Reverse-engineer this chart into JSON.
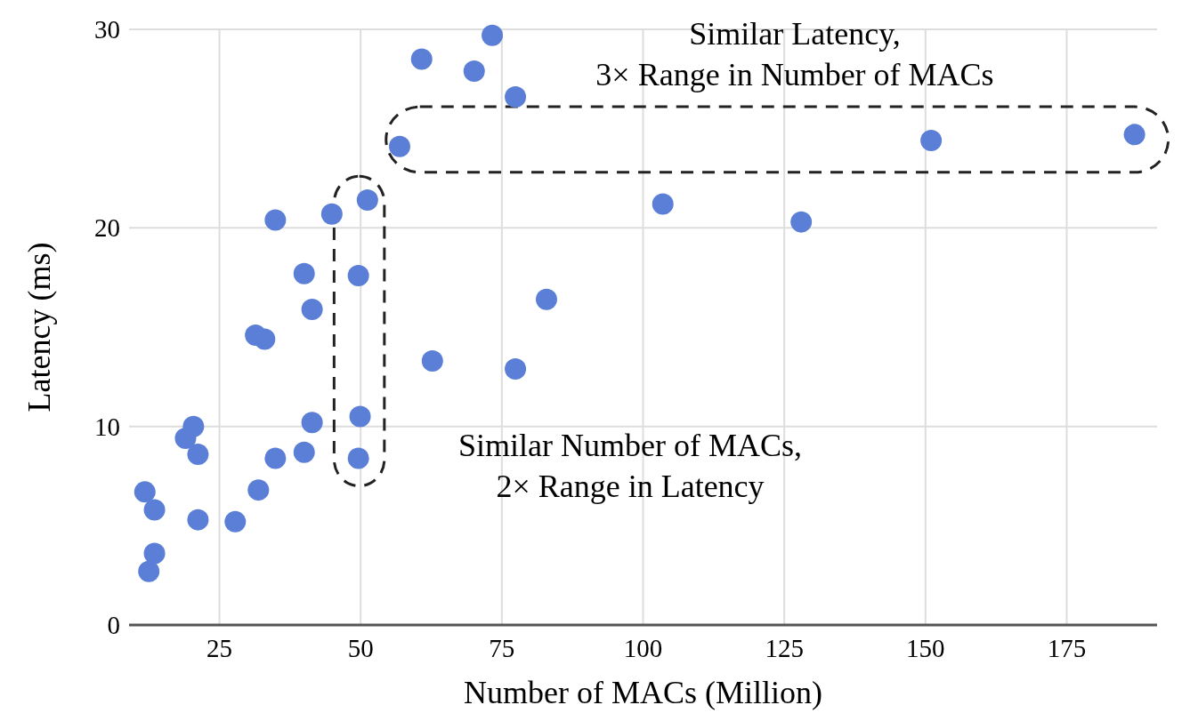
{
  "chart_data": {
    "type": "scatter",
    "xlabel": "Number of MACs (Million)",
    "ylabel": "Latency (ms)",
    "x": [
      11.8,
      13.5,
      12.5,
      13.5,
      19,
      20.4,
      21.2,
      21.2,
      27.8,
      31.9,
      34.9,
      40,
      41.4,
      49.9,
      49.6,
      62.7,
      77.4,
      73.3,
      60.8,
      70.1,
      77.4,
      56.9,
      51.2,
      44.9,
      34.9,
      40,
      49.6,
      41.4,
      31.4,
      33,
      103.5,
      128,
      151,
      187,
      82.9
    ],
    "series": [
      {
        "color": "#5b7fd6",
        "values": [
          6.7,
          5.8,
          2.7,
          3.6,
          9.4,
          10,
          8.6,
          5.3,
          5.2,
          6.8,
          8.4,
          8.7,
          10.2,
          10.5,
          8.4,
          13.3,
          12.9,
          29.7,
          28.5,
          27.9,
          26.6,
          24.1,
          21.4,
          20.7,
          20.4,
          17.7,
          17.6,
          15.9,
          14.6,
          14.4,
          21.2,
          20.3,
          24.4,
          24.7,
          16.4
        ]
      }
    ],
    "xlim": [
      9,
      191
    ],
    "ylim": [
      0,
      30
    ],
    "xticks": [
      25,
      50,
      75,
      100,
      125,
      150,
      175
    ],
    "yticks": [
      0,
      10,
      20,
      30
    ],
    "grid": true,
    "marker": "circle",
    "annotations": [
      "Similar Latency,\n3× Range in Number of MACs",
      "Similar Number of MACs,\n2× Range in Latency"
    ]
  }
}
